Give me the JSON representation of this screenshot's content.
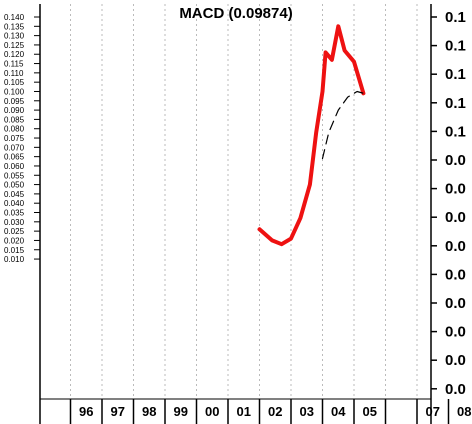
{
  "chart_data": {
    "type": "line",
    "title": "MACD (0.09874)",
    "xlabel": "",
    "ylabel": "",
    "x_ticks": [
      "96",
      "97",
      "98",
      "99",
      "00",
      "01",
      "02",
      "03",
      "04",
      "05",
      "",
      "07",
      "08"
    ],
    "left_y_ticks": [
      "0.140",
      "0.135",
      "0.130",
      "0.125",
      "0.120",
      "0.115",
      "0.110",
      "0.105",
      "0.100",
      "0.095",
      "0.090",
      "0.085",
      "0.080",
      "0.075",
      "0.070",
      "0.065",
      "0.060",
      "0.055",
      "0.050",
      "0.045",
      "0.040",
      "0.035",
      "0.030",
      "0.025",
      "0.020",
      "0.015",
      "0.010"
    ],
    "right_y_ticks": [
      "0.1",
      "0.1",
      "0.1",
      "0.1",
      "0.1",
      "0.0",
      "0.0",
      "0.0",
      "0.0",
      "0.0",
      "0.0",
      "0.0",
      "0.0",
      "0.0"
    ],
    "ylim": [
      0.007,
      0.142
    ],
    "xlim": [
      1995.6,
      2008.6
    ],
    "grid": true,
    "series": [
      {
        "line_style": "solid",
        "color": "#ee1111",
        "x": [
          2002.0,
          2002.4,
          2002.7,
          2003.0,
          2003.3,
          2003.6,
          2003.8,
          2004.0,
          2004.1,
          2004.3,
          2004.5,
          2004.7,
          2005.0,
          2005.3
        ],
        "y": [
          0.026,
          0.02,
          0.018,
          0.021,
          0.032,
          0.05,
          0.078,
          0.1,
          0.121,
          0.117,
          0.135,
          0.122,
          0.116,
          0.099
        ]
      },
      {
        "line_style": "dashed",
        "color": "#000000",
        "x": [
          2004.0,
          2004.2,
          2004.5,
          2004.8,
          2005.1,
          2005.3
        ],
        "y": [
          0.064,
          0.078,
          0.09,
          0.097,
          0.1,
          0.099
        ]
      }
    ]
  }
}
